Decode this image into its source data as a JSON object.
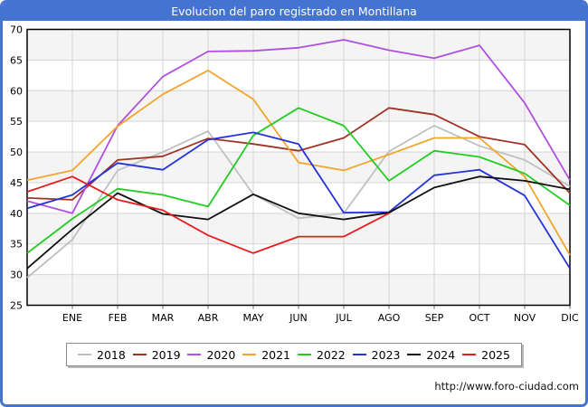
{
  "window": {
    "title": "Evolucion del paro registrado en Montillana",
    "footer_url": "http://www.foro-ciudad.com"
  },
  "colors": {
    "frame_blue": "#4573d2",
    "title_text": "#ffffff",
    "grid": "#d4d4d4",
    "band": "#f4f4f4",
    "plot_frame": "#000000"
  },
  "chart_data": {
    "type": "line",
    "title": "Evolucion del paro registrado en Montillana",
    "categories": [
      "ENE",
      "FEB",
      "MAR",
      "ABR",
      "MAY",
      "JUN",
      "JUL",
      "AGO",
      "SEP",
      "OCT",
      "NOV",
      "DIC"
    ],
    "ylim": [
      25,
      70
    ],
    "ytick_step": 5,
    "ytick_labels": [
      "70",
      "65",
      "60",
      "55",
      "50",
      "45",
      "40",
      "35",
      "30",
      "25"
    ],
    "grid": true,
    "legend_position": "bottom",
    "series": [
      {
        "name": "2018",
        "color": "#c0c0c0",
        "start": 29.5,
        "values": [
          35.7,
          47,
          50,
          53.4,
          43.1,
          39.2,
          40,
          50.1,
          54.3,
          51,
          48.7,
          44.4
        ]
      },
      {
        "name": "2019",
        "color": "#a13326",
        "start": 42.5,
        "values": [
          42.2,
          48.7,
          49.3,
          52.2,
          51.3,
          50.2,
          52.3,
          57.2,
          56.1,
          52.5,
          51.2,
          43.3
        ]
      },
      {
        "name": "2020",
        "color": "#b050e0",
        "start": 42,
        "values": [
          40,
          54.3,
          62.3,
          66.4,
          66.5,
          67,
          68.3,
          66.6,
          65.3,
          67.4,
          58,
          45.4
        ]
      },
      {
        "name": "2021",
        "color": "#f2a52c",
        "start": 45.4,
        "values": [
          47,
          54.2,
          59.4,
          63.3,
          58.6,
          48.3,
          47,
          49.6,
          52.3,
          52.3,
          46,
          33.2
        ]
      },
      {
        "name": "2022",
        "color": "#22cc22",
        "start": 33.5,
        "values": [
          39.1,
          44,
          43,
          41.1,
          52.7,
          57.2,
          54.3,
          45.3,
          50.2,
          49.2,
          46.5,
          41.3
        ]
      },
      {
        "name": "2023",
        "color": "#2433d9",
        "start": 40.8,
        "values": [
          43,
          48.2,
          47.1,
          52,
          53.2,
          51.3,
          40.1,
          40.2,
          46.2,
          47.1,
          42.9,
          31
        ]
      },
      {
        "name": "2024",
        "color": "#111111",
        "start": 31,
        "values": [
          37.4,
          43.3,
          39.9,
          39,
          43.1,
          40,
          39,
          40.1,
          44.2,
          46,
          45.3,
          43.9
        ]
      },
      {
        "name": "2025",
        "color": "#e81c1c",
        "start": 43.5,
        "values": [
          46,
          42.2,
          40.5,
          36.4,
          33.5,
          36.2,
          36.2,
          40
        ]
      }
    ]
  }
}
